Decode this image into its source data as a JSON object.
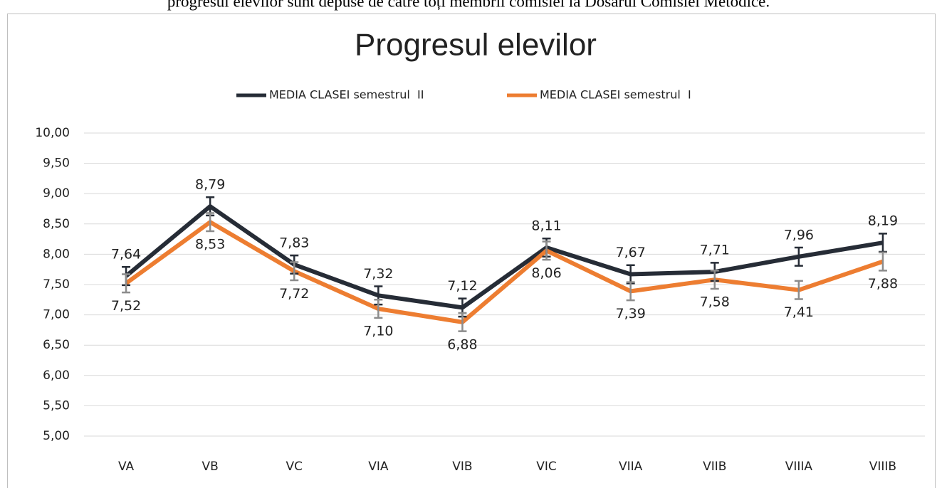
{
  "caption": "progresul elevilor sunt depuse de către toți membrii comisiei la Dosarul Comisiei Metodice.",
  "chart_data": {
    "type": "line",
    "title": "Progresul elevilor",
    "categories": [
      "VA",
      "VB",
      "VC",
      "VIA",
      "VIB",
      "VIC",
      "VIIA",
      "VIIB",
      "VIIIA",
      "VIIIB"
    ],
    "series": [
      {
        "name": "MEDIA CLASEI semestrul  II",
        "color": "#262c36",
        "error_color": "#262c36",
        "values": [
          7.64,
          8.79,
          7.83,
          7.32,
          7.12,
          8.11,
          7.67,
          7.71,
          7.96,
          8.19
        ],
        "value_labels": [
          "7,64",
          "8,79",
          "7,83",
          "7,32",
          "7,12",
          "8,11",
          "7,67",
          "7,71",
          "7,96",
          "8,19"
        ],
        "errors": [
          0.15,
          0.15,
          0.15,
          0.15,
          0.15,
          0.15,
          0.15,
          0.15,
          0.15,
          0.15
        ],
        "label_position": "above"
      },
      {
        "name": "MEDIA CLASEI semestrul  I",
        "color": "#ed7d31",
        "error_color": "#8c8c8c",
        "values": [
          7.52,
          8.53,
          7.72,
          7.1,
          6.88,
          8.06,
          7.39,
          7.58,
          7.41,
          7.88
        ],
        "value_labels": [
          "7,52",
          "8,53",
          "7,72",
          "7,10",
          "6,88",
          "8,06",
          "7,39",
          "7,58",
          "7,41",
          "7,88"
        ],
        "errors": [
          0.15,
          0.15,
          0.15,
          0.15,
          0.15,
          0.15,
          0.15,
          0.15,
          0.15,
          0.15
        ],
        "label_position": "below"
      }
    ],
    "ylim": [
      5,
      10
    ],
    "yticks": [
      {
        "value": 5,
        "label": "5,00"
      },
      {
        "value": 5.5,
        "label": "5,50"
      },
      {
        "value": 6,
        "label": "6,00"
      },
      {
        "value": 6.5,
        "label": "6,50"
      },
      {
        "value": 7,
        "label": "7,00"
      },
      {
        "value": 7.5,
        "label": "7,50"
      },
      {
        "value": 8,
        "label": "8,00"
      },
      {
        "value": 8.5,
        "label": "8,50"
      },
      {
        "value": 9,
        "label": "9,00"
      },
      {
        "value": 9.5,
        "label": "9,50"
      },
      {
        "value": 10,
        "label": "10,00"
      }
    ],
    "grid": true,
    "legend": "top"
  }
}
